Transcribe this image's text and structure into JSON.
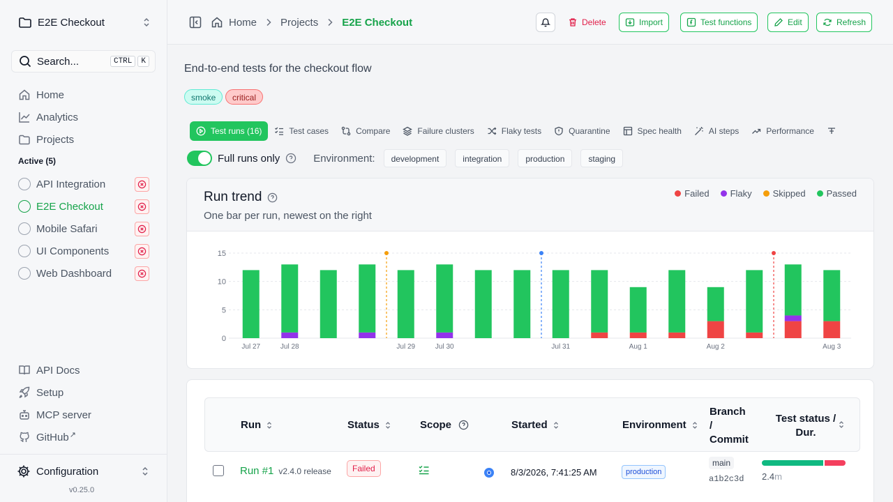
{
  "sidebar": {
    "project_name": "E2E Checkout",
    "search": {
      "label": "Search...",
      "kbd1": "CTRL",
      "kbd2": "K"
    },
    "nav": [
      {
        "label": "Home",
        "icon": "home-icon"
      },
      {
        "label": "Analytics",
        "icon": "analytics-icon"
      },
      {
        "label": "Projects",
        "icon": "folder-icon"
      }
    ],
    "active_header": "Active (5)",
    "projects": [
      {
        "label": "API Integration",
        "active": false
      },
      {
        "label": "E2E Checkout",
        "active": true
      },
      {
        "label": "Mobile Safari",
        "active": false
      },
      {
        "label": "UI Components",
        "active": false
      },
      {
        "label": "Web Dashboard",
        "active": false
      }
    ],
    "bottom_nav": [
      {
        "label": "API Docs",
        "icon": "book-icon"
      },
      {
        "label": "Setup",
        "icon": "rocket-icon"
      },
      {
        "label": "MCP server",
        "icon": "bot-icon"
      },
      {
        "label": "GitHub",
        "icon": "github-icon"
      }
    ],
    "external_mark": "↗",
    "config_label": "Configuration",
    "version": "v0.25.0"
  },
  "topbar": {
    "breadcrumbs": [
      "Home",
      "Projects",
      "E2E Checkout"
    ],
    "buttons": {
      "delete": "Delete",
      "import": "Import",
      "test_functions": "Test functions",
      "edit": "Edit",
      "refresh": "Refresh"
    }
  },
  "main": {
    "description": "End-to-end tests for the checkout flow",
    "tags": [
      "smoke",
      "critical"
    ],
    "tabs": [
      "Test runs (16)",
      "Test cases",
      "Compare",
      "Failure clusters",
      "Flaky tests",
      "Quarantine",
      "Spec health",
      "AI steps",
      "Performance"
    ],
    "full_runs_label": "Full runs only",
    "full_runs_on": true,
    "environment_label": "Environment:",
    "environments": [
      "development",
      "integration",
      "production",
      "staging"
    ]
  },
  "chart_card": {
    "title": "Run trend",
    "subtitle": "One bar per run, newest on the right",
    "legend": [
      {
        "label": "Failed",
        "color": "#ef4444"
      },
      {
        "label": "Flaky",
        "color": "#9333ea"
      },
      {
        "label": "Skipped",
        "color": "#f59e0b"
      },
      {
        "label": "Passed",
        "color": "#22c55e"
      }
    ]
  },
  "chart_data": {
    "type": "bar",
    "stacked": true,
    "ylim": [
      0,
      15
    ],
    "yticks": [
      0,
      5,
      10,
      15
    ],
    "grid": true,
    "legend_position": "top-right",
    "runs": 16,
    "x_tick_labels": [
      {
        "run": 1,
        "label": "Jul 27"
      },
      {
        "run": 2,
        "label": "Jul 28"
      },
      {
        "run": 5,
        "label": "Jul 29"
      },
      {
        "run": 6,
        "label": "Jul 30"
      },
      {
        "run": 9,
        "label": "Jul 31"
      },
      {
        "run": 11,
        "label": "Aug 1"
      },
      {
        "run": 13,
        "label": "Aug 2"
      },
      {
        "run": 16,
        "label": "Aug 3"
      }
    ],
    "series": [
      {
        "name": "Failed",
        "color": "#ef4444",
        "values": [
          0,
          0,
          0,
          0,
          0,
          0,
          0,
          0,
          0,
          1,
          1,
          1,
          3,
          1,
          3,
          3
        ]
      },
      {
        "name": "Flaky",
        "color": "#9333ea",
        "values": [
          0,
          1,
          0,
          1,
          0,
          1,
          0,
          0,
          0,
          0,
          0,
          0,
          0,
          0,
          1,
          0
        ]
      },
      {
        "name": "Skipped",
        "color": "#f59e0b",
        "values": [
          0,
          0,
          0,
          0,
          0,
          0,
          0,
          0,
          0,
          0,
          0,
          0,
          0,
          0,
          0,
          0
        ]
      },
      {
        "name": "Passed",
        "color": "#22c55e",
        "values": [
          12,
          12,
          12,
          12,
          12,
          12,
          12,
          12,
          12,
          11,
          8,
          11,
          6,
          11,
          9,
          9
        ]
      }
    ],
    "markers": [
      {
        "after_run": 4,
        "color": "#f59e0b"
      },
      {
        "after_run": 8,
        "color": "#3b82f6"
      },
      {
        "after_run": 14,
        "color": "#ef4444"
      }
    ]
  },
  "table": {
    "headers": [
      "Run",
      "Status",
      "Scope",
      "Started",
      "Environment",
      "Branch / Commit",
      "Test status / Dur."
    ],
    "rows": [
      {
        "run": "Run #1",
        "release": "v2.4.0 release",
        "status": "Failed",
        "started": "8/3/2026, 7:41:25 AM",
        "environment": "production",
        "branch": "main",
        "commit": "a1b2c3d",
        "duration": "2.4",
        "duration_unit": "m",
        "pass_fraction": 0.75,
        "fail_fraction": 0.25
      }
    ]
  }
}
